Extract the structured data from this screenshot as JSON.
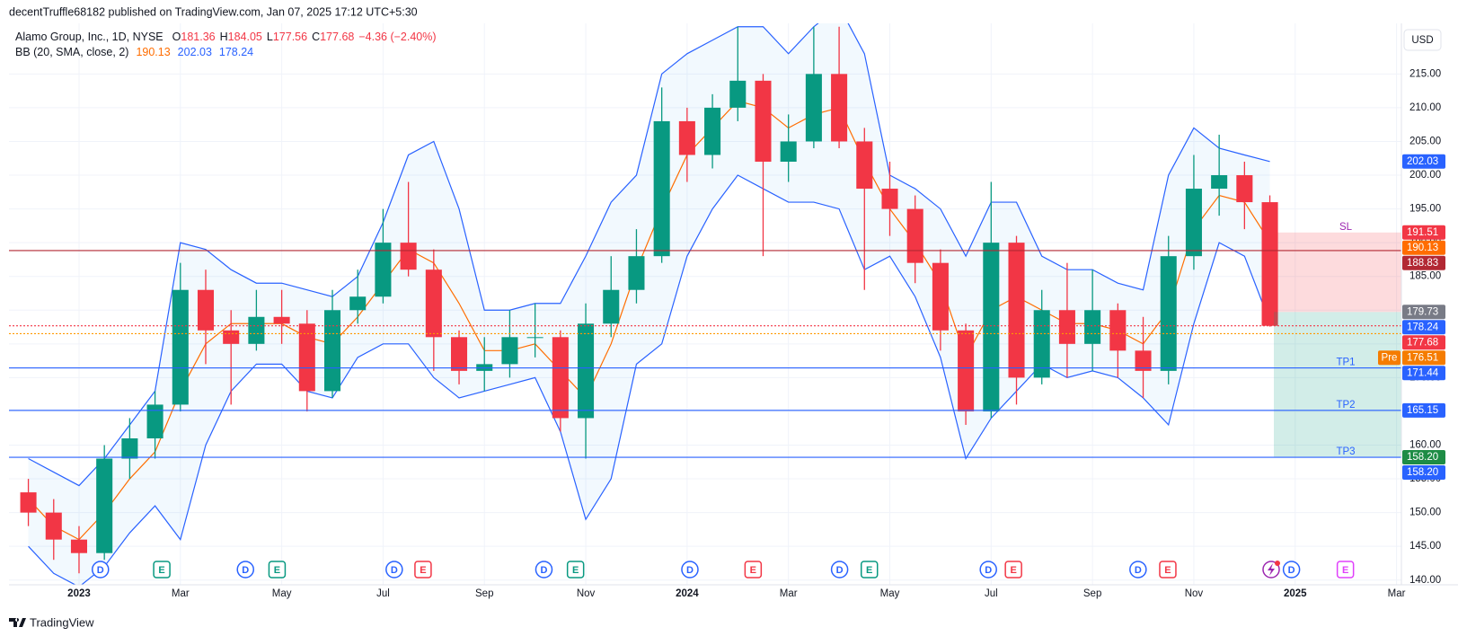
{
  "header": "decentTruffle68182 published on TradingView.com, Jan 07, 2025 17:12 UTC+5:30",
  "currency_button": "USD",
  "footer": "TradingView",
  "legend": {
    "symbol": "Alamo Group, Inc., 1D, NYSE",
    "ohlc": [
      {
        "key": "O",
        "value": 181.36
      },
      {
        "key": "H",
        "value": 184.05
      },
      {
        "key": "L",
        "value": 177.56
      },
      {
        "key": "C",
        "value": 177.68
      }
    ],
    "change": "−4.36 (−2.40%)",
    "indicator": "BB (20, SMA, close, 2)",
    "indicator_values": [
      {
        "value": 190.13,
        "color": "#ff6d00"
      },
      {
        "value": 202.03,
        "color": "#2962ff"
      },
      {
        "value": 178.24,
        "color": "#2962ff"
      }
    ]
  },
  "events": [
    {
      "label": "D",
      "color": "#2962ff"
    },
    {
      "label": "E",
      "color": "#089981"
    },
    {
      "label": "D",
      "color": "#2962ff"
    },
    {
      "label": "E",
      "color": "#089981"
    },
    {
      "label": "D",
      "color": "#2962ff"
    },
    {
      "label": "E",
      "color": "#f23645"
    },
    {
      "label": "D",
      "color": "#2962ff"
    },
    {
      "label": "E",
      "color": "#089981"
    },
    {
      "label": "D",
      "color": "#2962ff"
    },
    {
      "label": "E",
      "color": "#f23645"
    },
    {
      "label": "D",
      "color": "#2962ff"
    },
    {
      "label": "E",
      "color": "#089981"
    },
    {
      "label": "D",
      "color": "#2962ff"
    },
    {
      "label": "E",
      "color": "#f23645"
    },
    {
      "label": "D",
      "color": "#2962ff"
    },
    {
      "label": "E",
      "color": "#f23645"
    },
    {
      "label": "D",
      "color": "#2962ff"
    },
    {
      "label": "E",
      "color": "#e040fb"
    }
  ],
  "chart_data": {
    "type": "candlestick",
    "categories": [
      null,
      null,
      "2023",
      null,
      null,
      null,
      "Mar",
      null,
      null,
      null,
      "May",
      null,
      null,
      null,
      "Jul",
      null,
      null,
      null,
      "Sep",
      null,
      null,
      null,
      "Nov",
      null,
      null,
      null,
      "2024",
      null,
      null,
      null,
      "Mar",
      null,
      null,
      null,
      "May",
      null,
      null,
      null,
      "Jul",
      null,
      null,
      null,
      "Sep",
      null,
      null,
      null,
      "Nov",
      null,
      null,
      null,
      "2025",
      null,
      null,
      null,
      "Mar"
    ],
    "open": [
      153,
      150,
      146,
      144,
      158,
      161,
      166,
      183,
      177,
      175,
      179,
      178,
      168,
      180,
      182,
      190,
      186,
      176,
      171,
      172,
      176,
      176,
      164,
      178,
      183,
      188,
      208,
      203,
      210,
      214,
      202,
      205,
      215,
      205,
      198,
      195,
      187,
      177,
      165,
      190,
      170,
      180,
      175,
      180,
      174,
      171,
      188,
      198,
      200,
      196,
      null,
      null,
      null,
      null,
      null
    ],
    "high": [
      155,
      152,
      148,
      160,
      164,
      168,
      187,
      186,
      180,
      183,
      183,
      180,
      183,
      186,
      195,
      199,
      189,
      177,
      176,
      180,
      181,
      177,
      181,
      188,
      192,
      213,
      210,
      212,
      222,
      215,
      209,
      222,
      222,
      207,
      202,
      197,
      189,
      178,
      199,
      191,
      183,
      187,
      186,
      181,
      179,
      191,
      203,
      206,
      202,
      197,
      null,
      null,
      null,
      null,
      null
    ],
    "low": [
      148,
      143,
      141,
      143,
      155,
      158,
      165,
      172,
      166,
      174,
      175,
      165,
      167,
      178,
      181,
      185,
      171,
      169,
      168,
      170,
      173,
      162,
      158,
      176,
      181,
      187,
      199,
      201,
      208,
      188,
      199,
      204,
      204,
      183,
      191,
      184,
      174,
      163,
      164,
      166,
      169,
      170,
      171,
      170,
      167,
      169,
      186,
      194,
      192,
      177.56,
      null,
      null,
      null,
      null,
      null
    ],
    "close": [
      150,
      146,
      144,
      158,
      161,
      166,
      183,
      177,
      175,
      179,
      178,
      168,
      180,
      182,
      190,
      186,
      176,
      171,
      172,
      176,
      176,
      164,
      178,
      183,
      188,
      208,
      203,
      210,
      214,
      202,
      205,
      215,
      205,
      198,
      195,
      187,
      177,
      165,
      190,
      170,
      180,
      175,
      180,
      174,
      171,
      188,
      198,
      200,
      196,
      177.68,
      null,
      null,
      null,
      null,
      null
    ],
    "up_color": "#089981",
    "down_color": "#f23645",
    "bollinger": {
      "upper": [
        158,
        156,
        154,
        158,
        163,
        168,
        190,
        189,
        186,
        184,
        184,
        183,
        182,
        185,
        193,
        203,
        205,
        195,
        180,
        180,
        181,
        181,
        188,
        196,
        200,
        215,
        218,
        220,
        222,
        222,
        218,
        222,
        225,
        218,
        200,
        198,
        195,
        188,
        196,
        196,
        188,
        186,
        186,
        184,
        183,
        200,
        207,
        204,
        203,
        202.03,
        null,
        null,
        null,
        null,
        null
      ],
      "middle": [
        152,
        148,
        146,
        150,
        155,
        159,
        168,
        175,
        178,
        178,
        178,
        176,
        175,
        179,
        184,
        189,
        187,
        181,
        174,
        174,
        175,
        171,
        167,
        175,
        186,
        195,
        203,
        207,
        211,
        210,
        207,
        209,
        210,
        202,
        195,
        190,
        184,
        173,
        180,
        182,
        180,
        178,
        178,
        177,
        175,
        180,
        192,
        197,
        196,
        190.13,
        null,
        null,
        null,
        null,
        null
      ],
      "lower": [
        145,
        141,
        139,
        142,
        147,
        151,
        146,
        160,
        168,
        172,
        172,
        168,
        167,
        173,
        175,
        175,
        170,
        167,
        168,
        169,
        170,
        162,
        149,
        155,
        172,
        175,
        188,
        195,
        200,
        198,
        196,
        196,
        195,
        186,
        188,
        182,
        173,
        158,
        164,
        168,
        172,
        170,
        171,
        170,
        167,
        163,
        178,
        190,
        188,
        178.24,
        null,
        null,
        null,
        null,
        null
      ],
      "band_color": "#2962ff",
      "middle_color": "#ff6d00",
      "fill": "rgba(33,150,243,0.06)"
    },
    "ylim": [
      139.3,
      222.5
    ],
    "yticks": [
      {
        "value": 140,
        "label": "140.00"
      },
      {
        "value": 145,
        "label": "145.00"
      },
      {
        "value": 150,
        "label": "150.00"
      },
      {
        "value": 155,
        "label": "155.00"
      },
      {
        "value": 160,
        "label": "160.00"
      },
      {
        "value": 165,
        "label": "165.00"
      },
      {
        "value": 170,
        "label": "170.00"
      },
      {
        "value": 175,
        "label": "175.00"
      },
      {
        "value": 180,
        "label": "180.00"
      },
      {
        "value": 185,
        "label": "185.00"
      },
      {
        "value": 190,
        "label": "190.00"
      },
      {
        "value": 195,
        "label": "195.00"
      },
      {
        "value": 200,
        "label": "200.00"
      },
      {
        "value": 205,
        "label": "205.00"
      },
      {
        "value": 210,
        "label": "210.00"
      },
      {
        "value": 215,
        "label": "215.00"
      }
    ],
    "grid": true,
    "lines": [
      {
        "value": 188.83,
        "color": "#b22833",
        "style": "solid"
      },
      {
        "value": 171.44,
        "color": "#2962ff",
        "style": "solid"
      },
      {
        "value": 165.15,
        "color": "#2962ff",
        "style": "solid"
      },
      {
        "value": 158.2,
        "color": "#2962ff",
        "style": "solid"
      },
      {
        "value": 177.68,
        "color": "#f23645",
        "style": "dotted"
      },
      {
        "value": 176.51,
        "color": "#ff9800",
        "style": "dotted"
      }
    ],
    "position": {
      "stop": 191.51,
      "entry": 179.73,
      "target": 158.2,
      "loss_color": "rgba(242,54,69,0.18)",
      "profit_color": "rgba(8,153,129,0.18)"
    },
    "level_labels": [
      {
        "text": "SL",
        "value": 191.51,
        "color": "#9c27b0"
      },
      {
        "text": "TP1",
        "value": 171.44,
        "color": "#2962ff"
      },
      {
        "text": "TP2",
        "value": 165.15,
        "color": "#2962ff"
      },
      {
        "text": "TP3",
        "value": 158.2,
        "color": "#2962ff"
      }
    ],
    "price_tags": [
      {
        "value": 202.03,
        "label": "202.03",
        "color": "#2962ff"
      },
      {
        "value": 191.51,
        "label": "191.51",
        "color": "#f23645"
      },
      {
        "value": 190.13,
        "label": "190.13",
        "color": "#ff6d00"
      },
      {
        "value": 188.83,
        "label": "188.83",
        "color": "#b22833"
      },
      {
        "value": 179.73,
        "label": "179.73",
        "color": "#787b86"
      },
      {
        "value": 178.24,
        "label": "178.24",
        "color": "#2962ff"
      },
      {
        "value": 177.68,
        "label": "177.68",
        "color": "#f23645"
      },
      {
        "value": 176.51,
        "label": "176.51",
        "color": "#f57c00",
        "tag": "Pre"
      },
      {
        "value": 171.44,
        "label": "171.44",
        "color": "#2962ff"
      },
      {
        "value": 165.15,
        "label": "165.15",
        "color": "#2962ff"
      },
      {
        "value": 158.2,
        "label": "158.20",
        "color": "#1e8c45"
      },
      {
        "value": 158.2,
        "label": "158.20",
        "color": "#2962ff"
      }
    ]
  }
}
